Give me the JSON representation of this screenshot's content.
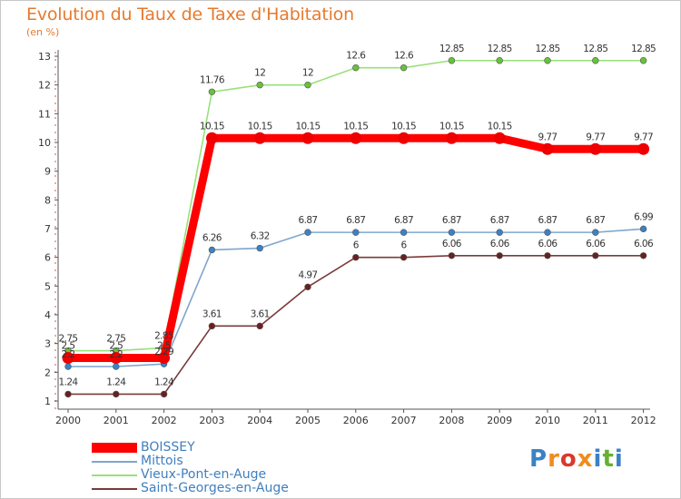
{
  "header": {
    "title": "Evolution du Taux de Taxe d'Habitation",
    "unit": "(en %)"
  },
  "logo": {
    "text": "Proxiti",
    "letters": [
      {
        "ch": "P",
        "color": "#3b82c4"
      },
      {
        "ch": "r",
        "color": "#f08c1e"
      },
      {
        "ch": "o",
        "color": "#d93a2b"
      },
      {
        "ch": "x",
        "color": "#f08c1e"
      },
      {
        "ch": "i",
        "color": "#3b82c4"
      },
      {
        "ch": "t",
        "color": "#66b032"
      },
      {
        "ch": "i",
        "color": "#3b82c4"
      }
    ]
  },
  "chart_data": {
    "type": "line",
    "title": "Evolution du Taux de Taxe d'Habitation",
    "ylabel": "(en %)",
    "xlabel": "",
    "x": [
      "2000",
      "2001",
      "2002",
      "2003",
      "2004",
      "2005",
      "2006",
      "2007",
      "2008",
      "2009",
      "2010",
      "2011",
      "2012"
    ],
    "ylim": [
      1,
      13
    ],
    "yticks": [
      1,
      2,
      3,
      4,
      5,
      6,
      7,
      8,
      9,
      10,
      11,
      12,
      13
    ],
    "grid": false,
    "legend": "bottom-left",
    "series": [
      {
        "name": "BOISSEY",
        "color": "#ff0000",
        "marker": "#ee0000",
        "values": [
          2.5,
          2.5,
          2.5,
          10.15,
          10.15,
          10.15,
          10.15,
          10.15,
          10.15,
          10.15,
          9.77,
          9.77,
          9.77
        ],
        "labels": [
          "2.5",
          "2.5",
          "2.5",
          "10.15",
          "10.15",
          "10.15",
          "10.15",
          "10.15",
          "10.15",
          "10.15",
          "9.77",
          "9.77",
          "9.77"
        ]
      },
      {
        "name": "Mittois",
        "color": "#7ea6cc",
        "marker": "#3b82c4",
        "values": [
          2.2,
          2.2,
          2.29,
          6.26,
          6.32,
          6.87,
          6.87,
          6.87,
          6.87,
          6.87,
          6.87,
          6.87,
          6.99
        ],
        "labels": [
          "2.2",
          "2.2",
          "2.29",
          "6.26",
          "6.32",
          "6.87",
          "6.87",
          "6.87",
          "6.87",
          "6.87",
          "6.87",
          "6.87",
          "6.99"
        ]
      },
      {
        "name": "Vieux-Pont-en-Auge",
        "color": "#99e07a",
        "marker": "#66c23a",
        "values": [
          2.75,
          2.75,
          2.85,
          11.76,
          12,
          12,
          12.6,
          12.6,
          12.85,
          12.85,
          12.85,
          12.85,
          12.85
        ],
        "labels": [
          "2.75",
          "2.75",
          "2.85",
          "11.76",
          "12",
          "12",
          "12.6",
          "12.6",
          "12.85",
          "12.85",
          "12.85",
          "12.85",
          "12.85"
        ]
      },
      {
        "name": "Saint-Georges-en-Auge",
        "color": "#7a3a3a",
        "marker": "#6b1f1f",
        "values": [
          1.24,
          1.24,
          1.24,
          3.61,
          3.61,
          4.97,
          6,
          6,
          6.06,
          6.06,
          6.06,
          6.06,
          6.06
        ],
        "labels": [
          "1.24",
          "1.24",
          "1.24",
          "3.61",
          "3.61",
          "4.97",
          "6",
          "6",
          "6.06",
          "6.06",
          "6.06",
          "6.06",
          "6.06"
        ]
      }
    ]
  }
}
